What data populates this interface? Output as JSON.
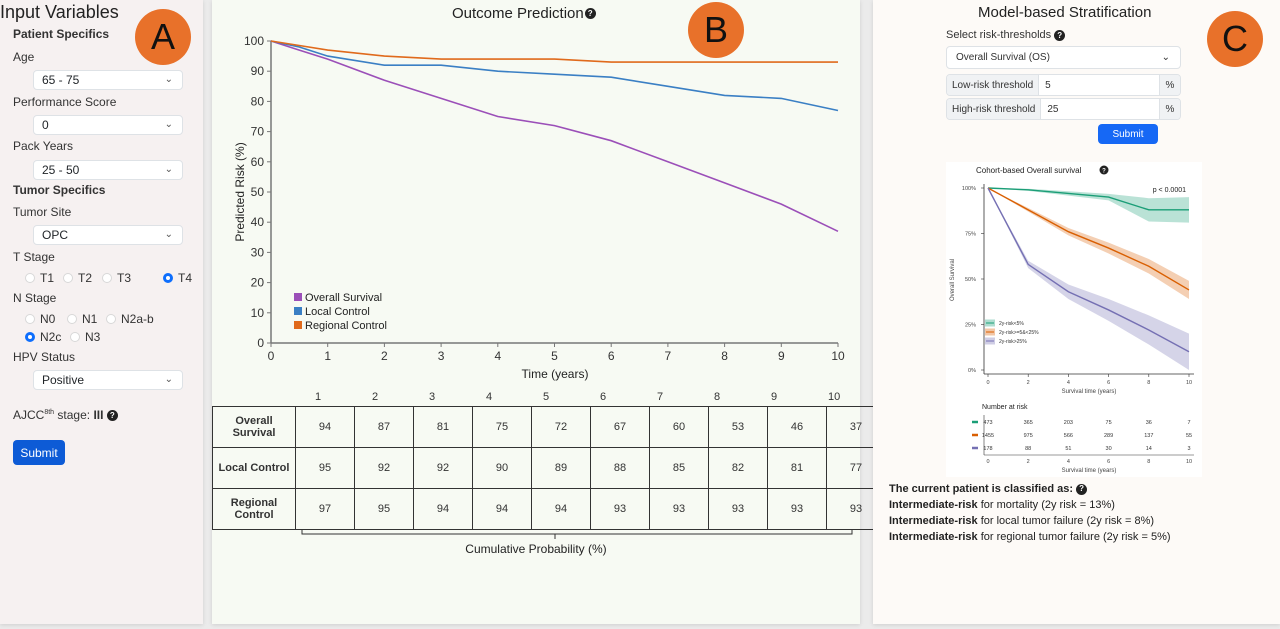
{
  "panelA": {
    "badge": "A",
    "title": "Input Variables",
    "patient_specifics": "Patient Specifics",
    "age": {
      "label": "Age",
      "value": "65 - 75"
    },
    "performance": {
      "label": "Performance Score",
      "value": "0"
    },
    "pack_years": {
      "label": "Pack Years",
      "value": "25 - 50"
    },
    "tumor_specifics": "Tumor Specifics",
    "tumor_site": {
      "label": "Tumor Site",
      "value": "OPC"
    },
    "t_stage": {
      "label": "T Stage",
      "options": [
        "T1",
        "T2",
        "T3",
        "T4"
      ],
      "selected": "T4"
    },
    "n_stage": {
      "label": "N Stage",
      "options": [
        "N0",
        "N1",
        "N2a-b",
        "N2c",
        "N3"
      ],
      "selected": "N2c"
    },
    "hpv": {
      "label": "HPV Status",
      "value": "Positive"
    },
    "ajcc": {
      "prefix": "AJCC",
      "sup": "8th",
      "suffix": " stage: ",
      "value": "III"
    },
    "submit": "Submit",
    "help_icon": "?"
  },
  "panelB": {
    "badge": "B",
    "title": "Outcome Prediction",
    "help_icon": "?",
    "table": {
      "columns": [
        "1",
        "2",
        "3",
        "4",
        "5",
        "6",
        "7",
        "8",
        "9",
        "10"
      ],
      "rows": [
        {
          "label": "Overall Survival",
          "values": [
            "94",
            "87",
            "81",
            "75",
            "72",
            "67",
            "60",
            "53",
            "46",
            "37"
          ]
        },
        {
          "label": "Local Control",
          "values": [
            "95",
            "92",
            "92",
            "90",
            "89",
            "88",
            "85",
            "82",
            "81",
            "77"
          ]
        },
        {
          "label": "Regional Control",
          "values": [
            "97",
            "95",
            "94",
            "94",
            "94",
            "93",
            "93",
            "93",
            "93",
            "93"
          ]
        }
      ],
      "caption": "Cumulative Probability (%)"
    }
  },
  "panelC": {
    "badge": "C",
    "title": "Model-based Stratification",
    "select_label": "Select risk-thresholds",
    "help_icon": "?",
    "endpoint": "Overall Survival (OS)",
    "low": {
      "label": "Low-risk threshold",
      "value": "5",
      "unit": "%"
    },
    "high": {
      "label": "High-risk threshold",
      "value": "25",
      "unit": "%"
    },
    "submit": "Submit",
    "classified_title": "The current patient is classified as:",
    "classifications": [
      {
        "risk": "Intermediate-risk",
        "text": " for mortality (2y risk = 13%)"
      },
      {
        "risk": "Intermediate-risk",
        "text": " for local tumor failure (2y risk = 8%)"
      },
      {
        "risk": "Intermediate-risk",
        "text": " for regional tumor failure (2y risk = 5%)"
      }
    ]
  },
  "chart_data": [
    {
      "type": "line",
      "title": "Outcome Prediction",
      "xlabel": "Time (years)",
      "ylabel": "Predicted Risk (%)",
      "xlim": [
        0,
        10
      ],
      "ylim": [
        0,
        100
      ],
      "xticks": [
        "0",
        "1",
        "2",
        "3",
        "4",
        "5",
        "6",
        "7",
        "8",
        "9",
        "10"
      ],
      "yticks": [
        "0",
        "10",
        "20",
        "30",
        "40",
        "50",
        "60",
        "70",
        "80",
        "90",
        "100"
      ],
      "legend_position": "bottom-left",
      "x": [
        0,
        0.5,
        1,
        2,
        3,
        4,
        5,
        6,
        7,
        8,
        9,
        10
      ],
      "series": [
        {
          "name": "Overall Survival",
          "color": "#9b4fb8",
          "values": [
            100,
            97,
            94,
            87,
            81,
            75,
            72,
            67,
            60,
            53,
            46,
            37
          ]
        },
        {
          "name": "Local Control",
          "color": "#3a7fc4",
          "values": [
            100,
            98,
            95,
            92,
            92,
            90,
            89,
            88,
            85,
            82,
            81,
            77
          ]
        },
        {
          "name": "Regional Control",
          "color": "#e06a1c",
          "values": [
            100,
            98.5,
            97,
            95,
            94,
            94,
            94,
            93,
            93,
            93,
            93,
            93
          ]
        }
      ]
    },
    {
      "type": "line",
      "title": "Cohort-based Overall survival",
      "annotation": "p < 0.0001",
      "xlabel": "Survival time (years)",
      "ylabel": "Overall Survival",
      "xlim": [
        0,
        10
      ],
      "ylim": [
        0,
        100
      ],
      "xticks": [
        "0",
        "2",
        "4",
        "6",
        "8",
        "10"
      ],
      "yticks": [
        "0%",
        "25%",
        "50%",
        "75%",
        "100%"
      ],
      "legend_position": "bottom-left",
      "x": [
        0,
        2,
        4,
        6,
        8,
        10
      ],
      "series": [
        {
          "name": "2y-risk<5%",
          "color": "#1b9e77",
          "values": [
            100,
            99,
            97,
            95,
            88,
            88
          ],
          "at_risk": [
            "473",
            "365",
            "203",
            "75",
            "36",
            "7"
          ]
        },
        {
          "name": "2y-risk>=5&<25%",
          "color": "#d95f02",
          "values": [
            100,
            88,
            76,
            67,
            57,
            44
          ],
          "at_risk": [
            "1455",
            "975",
            "566",
            "289",
            "137",
            "55"
          ]
        },
        {
          "name": "2y-risk>25%",
          "color": "#7570b3",
          "values": [
            100,
            58,
            43,
            33,
            22,
            10
          ],
          "at_risk": [
            "178",
            "88",
            "51",
            "30",
            "14",
            "3"
          ]
        }
      ],
      "risk_table_title": "Number at risk"
    }
  ]
}
